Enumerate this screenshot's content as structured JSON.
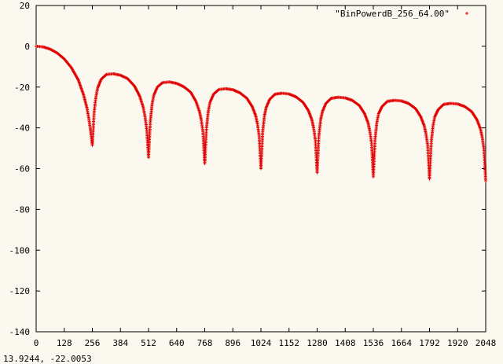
{
  "status_readout": "13.9244, -22.0053",
  "colors": {
    "series": "#e00000",
    "axis": "#000000",
    "background": "#fbf8ef"
  },
  "chart_data": {
    "type": "scatter",
    "title": "",
    "xlabel": "",
    "ylabel": "",
    "xlim": [
      0,
      2048
    ],
    "ylim": [
      -140,
      20
    ],
    "xticks": [
      0,
      128,
      256,
      384,
      512,
      640,
      768,
      896,
      1024,
      1152,
      1280,
      1408,
      1536,
      1664,
      1792,
      1920,
      2048
    ],
    "yticks": [
      20,
      0,
      -20,
      -40,
      -60,
      -80,
      -100,
      -120,
      -140
    ],
    "legend_position": "top-right",
    "marker": "+",
    "series": [
      {
        "name": "\"BinPowerdB_256_64.00\"",
        "x": [
          0,
          32,
          64,
          96,
          128,
          160,
          192,
          216,
          232,
          240,
          248,
          256,
          264,
          272,
          280,
          296,
          320,
          352,
          384,
          416,
          448,
          472,
          488,
          496,
          504,
          512,
          520,
          528,
          536,
          552,
          576,
          608,
          640,
          672,
          704,
          728,
          744,
          752,
          760,
          768,
          776,
          784,
          792,
          808,
          832,
          864,
          896,
          928,
          960,
          984,
          1000,
          1008,
          1016,
          1024,
          1032,
          1040,
          1048,
          1064,
          1088,
          1120,
          1152,
          1184,
          1216,
          1240,
          1256,
          1264,
          1272,
          1280,
          1288,
          1296,
          1304,
          1320,
          1344,
          1376,
          1408,
          1440,
          1472,
          1496,
          1512,
          1520,
          1528,
          1536,
          1544,
          1552,
          1560,
          1576,
          1600,
          1632,
          1664,
          1696,
          1728,
          1752,
          1768,
          1776,
          1784,
          1792,
          1800,
          1808,
          1816,
          1832,
          1856,
          1888,
          1920,
          1952,
          1984,
          2008,
          2024,
          2032,
          2040,
          2048
        ],
        "y": [
          0,
          -0.3,
          -1.4,
          -3.3,
          -6.2,
          -10.4,
          -16.5,
          -23.8,
          -30.5,
          -35.5,
          -41.5,
          -48.5,
          -32.5,
          -25,
          -20.5,
          -16.2,
          -13.8,
          -13.5,
          -14.2,
          -15.8,
          -19.5,
          -24.5,
          -30,
          -34.5,
          -41,
          -54.5,
          -37,
          -28.5,
          -24,
          -20,
          -17.8,
          -17.5,
          -18.2,
          -19.8,
          -22.5,
          -27,
          -32,
          -36,
          -42,
          -57.5,
          -40,
          -32,
          -27.5,
          -23.5,
          -21.2,
          -20.8,
          -21.3,
          -22.8,
          -25.5,
          -29.5,
          -34,
          -38,
          -44,
          -60,
          -42,
          -34,
          -30,
          -26,
          -23.5,
          -23,
          -23.4,
          -24.8,
          -27.5,
          -31.5,
          -36,
          -40,
          -46,
          -62,
          -44,
          -36,
          -32,
          -28,
          -25.5,
          -25,
          -25.3,
          -26.5,
          -29,
          -33,
          -37.5,
          -41.5,
          -47.5,
          -64,
          -45.5,
          -37.5,
          -33,
          -29.5,
          -27,
          -26.5,
          -26.8,
          -28,
          -30.5,
          -34.5,
          -39,
          -43,
          -49,
          -65,
          -47,
          -39,
          -34.5,
          -31,
          -28.5,
          -28,
          -28.3,
          -29.5,
          -32,
          -36,
          -40.5,
          -44.5,
          -50.5,
          -66
        ]
      }
    ]
  }
}
